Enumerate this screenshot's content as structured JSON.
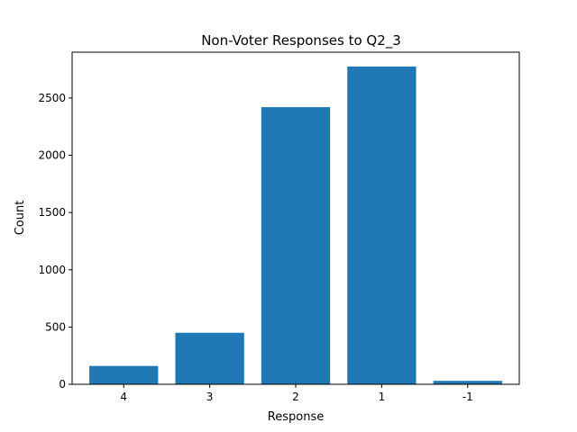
{
  "chart_data": {
    "type": "bar",
    "title": "Non-Voter Responses to Q2_3",
    "xlabel": "Response",
    "ylabel": "Count",
    "categories": [
      "4",
      "3",
      "2",
      "1",
      "-1"
    ],
    "values": [
      160,
      450,
      2420,
      2775,
      30
    ],
    "ylim": [
      0,
      2900
    ],
    "yticks": [
      0,
      500,
      1000,
      1500,
      2000,
      2500
    ],
    "bar_color": "#1f77b4",
    "grid": false,
    "legend": "none"
  }
}
